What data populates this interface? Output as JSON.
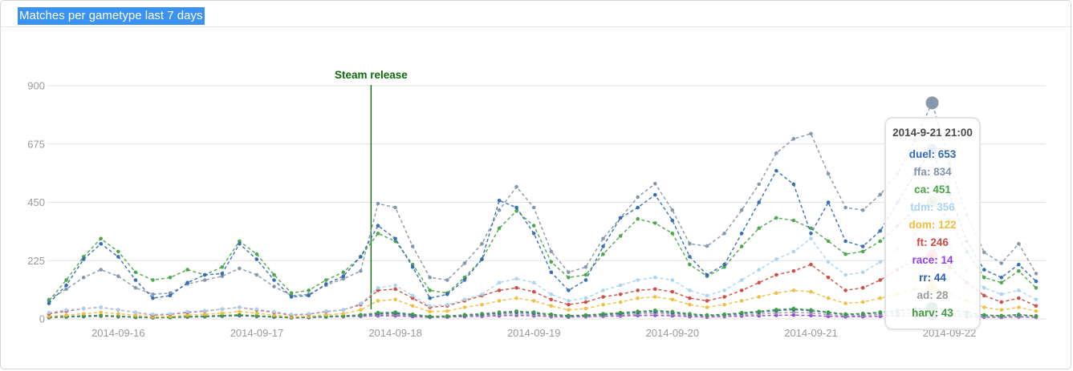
{
  "page": {
    "title": "Matches per gametype last 7 days"
  },
  "chart_data": {
    "type": "line",
    "title": "Matches per gametype last 7 days",
    "x_unit": "datetime",
    "x_start": "2014-09-15 12:00",
    "x_step_hours": 3,
    "ylim": [
      0,
      900
    ],
    "y_ticks": [
      900,
      675,
      450,
      225,
      0
    ],
    "grid": "horizontal",
    "axis_color": "#9a9a9a",
    "x_ticks": [
      {
        "index": 4,
        "label": "2014-09-16"
      },
      {
        "index": 12,
        "label": "2014-09-17"
      },
      {
        "index": 20,
        "label": "2014-09-18"
      },
      {
        "index": 28,
        "label": "2014-09-19"
      },
      {
        "index": 36,
        "label": "2014-09-20"
      },
      {
        "index": 44,
        "label": "2014-09-21"
      },
      {
        "index": 52,
        "label": "2014-09-22"
      }
    ],
    "annotation": {
      "label": "Steam release",
      "time": "2014-09-17 19:30",
      "index": 18.6,
      "color": "#0b6b0b"
    },
    "highlight": {
      "index": 51,
      "title": "2014-9-21 21:00",
      "entries": [
        {
          "name": "duel",
          "value": 653
        },
        {
          "name": "ffa",
          "value": 834
        },
        {
          "name": "ca",
          "value": 451
        },
        {
          "name": "tdm",
          "value": 356
        },
        {
          "name": "dom",
          "value": 122
        },
        {
          "name": "ft",
          "value": 246
        },
        {
          "name": "race",
          "value": 14
        },
        {
          "name": "rr",
          "value": 44
        },
        {
          "name": "ad",
          "value": 28
        },
        {
          "name": "harv",
          "value": 43
        }
      ]
    },
    "series": [
      {
        "name": "race",
        "color": "#9440dd",
        "values": [
          8,
          10,
          12,
          14,
          10,
          7,
          5,
          6,
          8,
          9,
          11,
          13,
          10,
          7,
          5,
          6,
          8,
          9,
          10,
          12,
          12,
          9,
          6,
          7,
          9,
          10,
          12,
          14,
          12,
          9,
          7,
          8,
          10,
          11,
          13,
          14,
          12,
          9,
          7,
          9,
          11,
          12,
          14,
          15,
          13,
          10,
          8,
          9,
          10,
          12,
          13,
          14,
          12,
          9,
          7,
          6,
          8,
          6
        ]
      },
      {
        "name": "ad",
        "color": "#9a9a9a",
        "values": [
          5,
          7,
          9,
          10,
          8,
          6,
          4,
          5,
          7,
          8,
          10,
          12,
          9,
          7,
          4,
          5,
          7,
          9,
          12,
          16,
          17,
          12,
          7,
          8,
          11,
          13,
          17,
          20,
          17,
          12,
          9,
          10,
          13,
          15,
          19,
          21,
          18,
          13,
          10,
          12,
          16,
          19,
          23,
          26,
          23,
          17,
          12,
          14,
          17,
          21,
          25,
          28,
          23,
          16,
          10,
          8,
          11,
          7
        ]
      },
      {
        "name": "rr",
        "color": "#2a5dab",
        "values": [
          6,
          8,
          10,
          12,
          10,
          7,
          5,
          6,
          8,
          10,
          12,
          14,
          11,
          8,
          5,
          6,
          9,
          11,
          14,
          20,
          22,
          15,
          9,
          10,
          14,
          17,
          22,
          26,
          22,
          16,
          11,
          13,
          17,
          20,
          25,
          28,
          24,
          17,
          13,
          16,
          21,
          26,
          32,
          36,
          32,
          24,
          17,
          19,
          24,
          30,
          38,
          44,
          36,
          25,
          15,
          12,
          16,
          11
        ]
      },
      {
        "name": "harv",
        "color": "#3f9e3f",
        "values": [
          7,
          9,
          11,
          13,
          11,
          8,
          5,
          6,
          9,
          11,
          13,
          16,
          12,
          9,
          6,
          7,
          10,
          12,
          16,
          24,
          26,
          18,
          10,
          11,
          16,
          20,
          26,
          30,
          26,
          18,
          13,
          15,
          20,
          24,
          29,
          33,
          28,
          20,
          15,
          18,
          24,
          29,
          36,
          40,
          35,
          26,
          19,
          21,
          26,
          32,
          39,
          43,
          36,
          25,
          15,
          12,
          17,
          11
        ]
      },
      {
        "name": "dom",
        "color": "#f0bd3e",
        "values": [
          10,
          15,
          20,
          25,
          20,
          14,
          8,
          10,
          15,
          18,
          22,
          28,
          22,
          15,
          8,
          10,
          16,
          20,
          35,
          70,
          75,
          50,
          28,
          30,
          45,
          55,
          70,
          80,
          70,
          50,
          35,
          40,
          55,
          65,
          80,
          85,
          75,
          55,
          45,
          55,
          70,
          85,
          100,
          110,
          105,
          80,
          60,
          65,
          80,
          95,
          115,
          122,
          100,
          70,
          45,
          35,
          45,
          30
        ]
      },
      {
        "name": "ft",
        "color": "#cb4a42",
        "values": [
          20,
          30,
          40,
          45,
          35,
          25,
          15,
          18,
          25,
          30,
          38,
          45,
          35,
          25,
          15,
          18,
          28,
          35,
          55,
          110,
          115,
          80,
          45,
          50,
          70,
          90,
          110,
          120,
          105,
          75,
          55,
          65,
          85,
          95,
          110,
          115,
          105,
          80,
          70,
          85,
          110,
          140,
          170,
          185,
          210,
          160,
          110,
          120,
          150,
          190,
          230,
          246,
          200,
          140,
          90,
          65,
          80,
          50
        ]
      },
      {
        "name": "tdm",
        "color": "#a9d3f2",
        "values": [
          25,
          35,
          40,
          45,
          35,
          25,
          18,
          20,
          28,
          32,
          38,
          45,
          38,
          28,
          18,
          20,
          30,
          35,
          60,
          120,
          130,
          90,
          50,
          55,
          75,
          95,
          140,
          155,
          140,
          95,
          70,
          80,
          110,
          130,
          150,
          160,
          150,
          110,
          90,
          110,
          150,
          190,
          230,
          260,
          310,
          220,
          170,
          180,
          220,
          270,
          330,
          356,
          280,
          190,
          120,
          95,
          110,
          75
        ]
      },
      {
        "name": "ffa",
        "color": "#8294a9",
        "values": [
          75,
          115,
          160,
          190,
          165,
          120,
          95,
          100,
          135,
          150,
          165,
          195,
          170,
          125,
          90,
          95,
          130,
          155,
          185,
          445,
          430,
          280,
          160,
          150,
          215,
          290,
          420,
          510,
          430,
          260,
          180,
          200,
          310,
          390,
          470,
          522,
          420,
          290,
          281,
          330,
          420,
          520,
          640,
          695,
          715,
          560,
          430,
          420,
          480,
          560,
          690,
          834,
          600,
          400,
          257,
          215,
          290,
          175
        ]
      },
      {
        "name": "ca",
        "color": "#47a447",
        "values": [
          70,
          150,
          240,
          310,
          260,
          180,
          150,
          160,
          190,
          170,
          200,
          300,
          250,
          170,
          100,
          110,
          150,
          180,
          240,
          330,
          300,
          210,
          110,
          100,
          160,
          230,
          350,
          417,
          360,
          220,
          160,
          170,
          250,
          320,
          386,
          370,
          330,
          210,
          165,
          200,
          280,
          350,
          390,
          380,
          350,
          300,
          250,
          260,
          300,
          360,
          420,
          451,
          380,
          260,
          160,
          140,
          185,
          120
        ]
      },
      {
        "name": "duel",
        "color": "#3069b2",
        "values": [
          60,
          130,
          230,
          290,
          240,
          150,
          80,
          90,
          140,
          170,
          175,
          290,
          230,
          150,
          85,
          90,
          135,
          165,
          240,
          360,
          310,
          200,
          80,
          95,
          150,
          230,
          457,
          430,
          330,
          180,
          110,
          150,
          280,
          390,
          430,
          479,
          380,
          240,
          170,
          210,
          330,
          450,
          572,
          520,
          330,
          450,
          300,
          280,
          340,
          450,
          560,
          653,
          480,
          300,
          190,
          160,
          210,
          145
        ]
      }
    ]
  }
}
